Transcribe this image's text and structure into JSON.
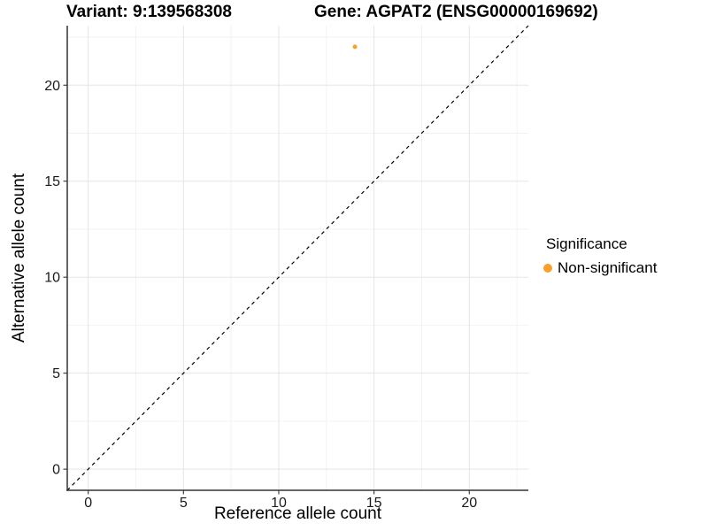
{
  "chart_data": {
    "type": "scatter",
    "titles": [
      "Variant: 9:139568308",
      "Gene: AGPAT2 (ENSG00000169692)"
    ],
    "xlabel": "Reference allele count",
    "ylabel": "Alternative allele count",
    "xlim": [
      -1.1,
      23.1
    ],
    "ylim": [
      -1.1,
      23.1
    ],
    "x_ticks": [
      0,
      5,
      10,
      15,
      20
    ],
    "y_ticks": [
      0,
      5,
      10,
      15,
      20
    ],
    "x_minor_ticks": [
      2.5,
      7.5,
      12.5,
      17.5,
      22.5
    ],
    "y_minor_ticks": [
      2.5,
      7.5,
      12.5,
      17.5,
      22.5
    ],
    "grid": "major and minor gridlines, white background",
    "points": [
      {
        "x": 14,
        "y": 22,
        "series": "Non-significant"
      }
    ],
    "reference_line": {
      "type": "identity y=x",
      "style": "dashed",
      "color": "#000000"
    },
    "legend": {
      "title": "Significance",
      "position": "right",
      "items": [
        {
          "label": "Non-significant",
          "color": "#F9A02C",
          "marker": "circle"
        }
      ]
    },
    "colors": {
      "point": "#F9A02C",
      "major_grid": "#E5E5E5",
      "minor_grid": "#F2F2F2",
      "axis_line": "#333333"
    }
  }
}
